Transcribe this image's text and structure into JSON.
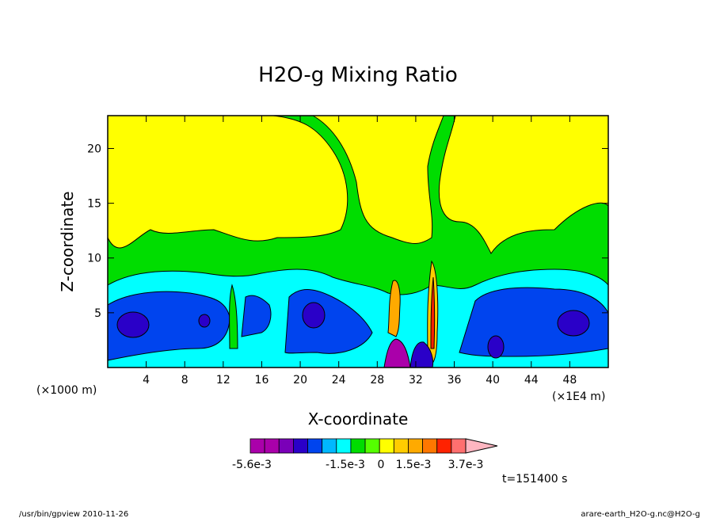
{
  "chart_data": {
    "type": "heatmap",
    "title": "H2O-g Mixing Ratio",
    "xlabel": "X-coordinate",
    "ylabel": "Z-coordinate",
    "x_unit_left": "(×1000 m)",
    "x_unit_right": "(×1E4 m)",
    "xlim": [
      0,
      52
    ],
    "ylim": [
      0,
      23
    ],
    "x_ticks": [
      4,
      8,
      12,
      16,
      20,
      24,
      28,
      32,
      36,
      40,
      44,
      48
    ],
    "y_ticks": [
      5,
      10,
      15,
      20
    ],
    "time_label": "t=151400 s",
    "colorbar": {
      "labels": [
        "-5.6e-3",
        "-1.5e-3",
        "0",
        "1.5e-3",
        "3.7e-3"
      ],
      "colors": [
        "#aa00aa",
        "#aa00aa",
        "#7a00b8",
        "#2a00c8",
        "#0044ee",
        "#00b8ff",
        "#00ffff",
        "#00dd00",
        "#55ff00",
        "#ffff00",
        "#ffcc00",
        "#ffaa00",
        "#ff7700",
        "#ff2200",
        "#ff6f6f",
        "#ffb6c1"
      ]
    },
    "regions": [
      {
        "name": "yellow",
        "color": "#ffff00",
        "x": [
          0,
          52
        ],
        "z": [
          11,
          23
        ]
      },
      {
        "name": "green",
        "color": "#00dd00",
        "x": [
          0,
          52
        ],
        "z": [
          6.5,
          11
        ]
      },
      {
        "name": "cyan",
        "color": "#00ffff",
        "x": [
          0,
          52
        ],
        "z": [
          4.5,
          6.5
        ]
      },
      {
        "name": "blue",
        "color": "#0044ee",
        "x": [
          0,
          52
        ],
        "z": [
          1.5,
          4.5
        ]
      },
      {
        "name": "deep-blue",
        "color": "#2a00c8",
        "x": [
          2,
          4
        ],
        "z": [
          3,
          4.5
        ]
      },
      {
        "name": "purple",
        "color": "#aa00aa",
        "x": [
          27,
          30
        ],
        "z": [
          0,
          2
        ]
      }
    ]
  },
  "footer": {
    "left": "/usr/bin/gpview   2010-11-26",
    "right": "arare-earth_H2O-g.nc@H2O-g"
  }
}
